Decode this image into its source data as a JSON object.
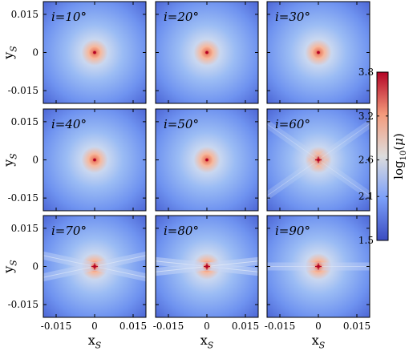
{
  "chart_data": {
    "type": "heatmap",
    "grid": {
      "rows": 3,
      "cols": 3
    },
    "panels": [
      {
        "label": "i=10°",
        "band_angle_deg": null,
        "band_strength": 0
      },
      {
        "label": "i=20°",
        "band_angle_deg": null,
        "band_strength": 0
      },
      {
        "label": "i=30°",
        "band_angle_deg": null,
        "band_strength": 0
      },
      {
        "label": "i=40°",
        "band_angle_deg": null,
        "band_strength": 0
      },
      {
        "label": "i=50°",
        "band_angle_deg": null,
        "band_strength": 0
      },
      {
        "label": "i=60°",
        "band_angle_deg": 35,
        "band_strength": 0.35
      },
      {
        "label": "i=70°",
        "band_angle_deg": 12,
        "band_strength": 0.55
      },
      {
        "label": "i=80°",
        "band_angle_deg": 6,
        "band_strength": 0.65
      },
      {
        "label": "i=90°",
        "band_angle_deg": 0,
        "band_strength": 0.3
      }
    ],
    "xlabel": "x_S",
    "ylabel": "y_S",
    "xlim": [
      -0.02,
      0.02
    ],
    "ylim": [
      -0.02,
      0.02
    ],
    "xticks": [
      -0.015,
      0,
      0.015
    ],
    "xtick_labels": [
      "-0.015",
      "0",
      "0.015"
    ],
    "yticks": [
      0.015,
      0,
      -0.015
    ],
    "ytick_labels": [
      "0.015",
      "0",
      "-0.015"
    ],
    "colorbar": {
      "label": "log10(μ)",
      "min": 1.5,
      "max": 3.8,
      "ticks": [
        3.8,
        3.2,
        2.6,
        2.1,
        1.5
      ],
      "tick_labels": [
        "3.8",
        "3.2",
        "2.6",
        "2.1",
        "1.5"
      ],
      "colors": [
        "#3b4cc0",
        "#7b9ff9",
        "#dddddd",
        "#f49a7b",
        "#b40426"
      ]
    }
  }
}
